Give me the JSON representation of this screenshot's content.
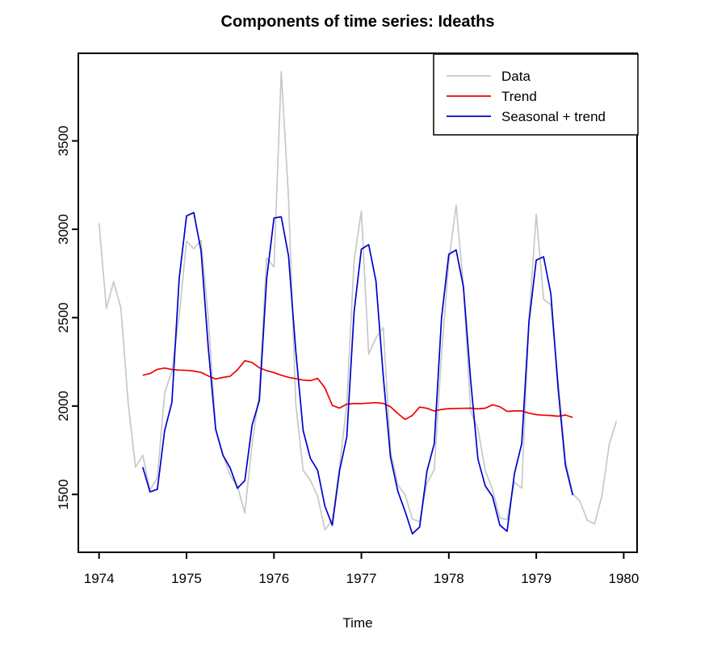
{
  "title": "Components of time series: Ideaths",
  "xlabel": "Time",
  "chart_data": {
    "type": "line",
    "title": "Components of time series: Ideaths",
    "xlabel": "Time",
    "ylabel": "",
    "xlim": [
      1973.763,
      1980.153
    ],
    "ylim": [
      1172.5,
      3995.6
    ],
    "x_ticks": [
      "1974",
      "1975",
      "1976",
      "1977",
      "1978",
      "1979",
      "1980"
    ],
    "x_tick_values": [
      1974,
      1975,
      1976,
      1977,
      1978,
      1979,
      1980
    ],
    "y_ticks": [
      "1500",
      "2000",
      "2500",
      "3000",
      "3500"
    ],
    "y_tick_values": [
      1500,
      2000,
      2500,
      3000,
      3500
    ],
    "grid": false,
    "legend_position": "top-right",
    "x_step": 0.0833333,
    "series": [
      {
        "name": "Data",
        "color": "#c8c8c8",
        "x_start": 1974.0,
        "values": [
          3035,
          2552,
          2704,
          2554,
          2014,
          1655,
          1721,
          1524,
          1596,
          2074,
          2199,
          2512,
          2933,
          2889,
          2938,
          2497,
          1870,
          1726,
          1607,
          1545,
          1396,
          1787,
          2076,
          2837,
          2787,
          3891,
          3179,
          2011,
          1636,
          1580,
          1489,
          1300,
          1356,
          1653,
          2013,
          2823,
          3102,
          2294,
          2385,
          2444,
          1748,
          1554,
          1498,
          1361,
          1346,
          1564,
          1640,
          2293,
          2815,
          3137,
          2679,
          1969,
          1870,
          1633,
          1529,
          1366,
          1357,
          1570,
          1535,
          2491,
          3084,
          2605,
          2573,
          2143,
          1693,
          1504,
          1461,
          1354,
          1333,
          1492,
          1781,
          1915
        ]
      },
      {
        "name": "Trend",
        "color": "#ee0000",
        "x_start": 1974.5,
        "values": [
          2174.1,
          2183.9,
          2207.7,
          2215.0,
          2206.7,
          2203.6,
          2201.8,
          2197.9,
          2190.5,
          2170.2,
          2153.1,
          2161.5,
          2169.0,
          2204.7,
          2256.5,
          2246.3,
          2216.3,
          2200.4,
          2189.4,
          2174.3,
          2162.4,
          2155.2,
          2147.0,
          2143.8,
          2156.3,
          2102.9,
          2003.3,
          1988.2,
          2010.9,
          2014.5,
          2013.8,
          2016.7,
          2018.8,
          2014.7,
          1995.5,
          1957.8,
          1923.8,
          1947.0,
          1994.3,
          1986.8,
          1972.1,
          1980.5,
          1985.0,
          1986.5,
          1987.2,
          1987.9,
          1983.8,
          1987.7,
          2007.1,
          1996.2,
          1969.6,
          1972.4,
          1972.3,
          1959.5,
          1951.3,
          1948.0,
          1946.5,
          1942.3,
          1949.3,
          1935.5
        ]
      },
      {
        "name": "Seasonal + trend",
        "color": "#0000cd",
        "x_start": 1974.5,
        "values": [
          1654.6,
          1514.0,
          1529.4,
          1860.7,
          2021.4,
          2721.0,
          3075.6,
          3094.3,
          2878.1,
          2326.8,
          1868.6,
          1721.4,
          1649.5,
          1534.8,
          1578.2,
          1892.0,
          2031.0,
          2717.8,
          3063.2,
          3070.7,
          2850.0,
          2311.8,
          1862.5,
          1703.7,
          1636.8,
          1433.0,
          1325.0,
          1633.9,
          1825.6,
          2531.9,
          2887.6,
          2913.1,
          2706.4,
          2171.3,
          1711.0,
          1517.7,
          1404.3,
          1277.1,
          1316.0,
          1632.5,
          1786.8,
          2497.9,
          2858.8,
          2882.9,
          2674.8,
          2144.5,
          1699.3,
          1547.6,
          1487.6,
          1326.3,
          1291.3,
          1618.1,
          1787.0,
          2476.9,
          2825.1,
          2844.4,
          2634.1,
          2098.9,
          1664.8,
          1495.4
        ]
      }
    ]
  }
}
